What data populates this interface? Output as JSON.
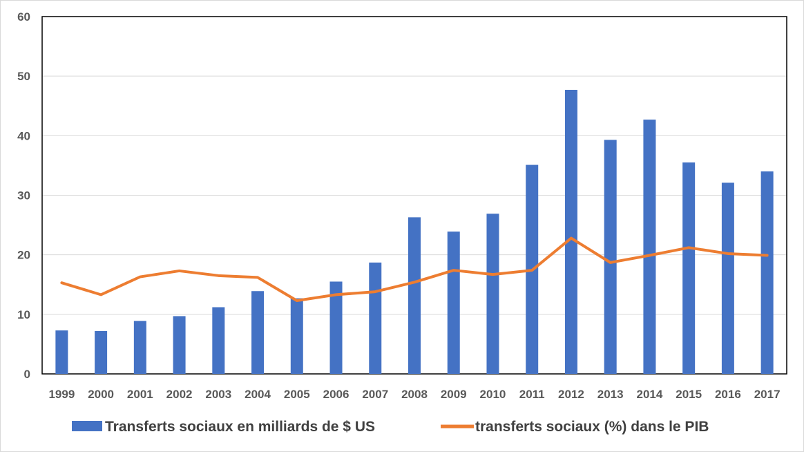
{
  "chart_data": {
    "type": "bar",
    "categories": [
      "1999",
      "2000",
      "2001",
      "2002",
      "2003",
      "2004",
      "2005",
      "2006",
      "2007",
      "2008",
      "2009",
      "2010",
      "2011",
      "2012",
      "2013",
      "2014",
      "2015",
      "2016",
      "2017"
    ],
    "series": [
      {
        "name": "Transferts sociaux en milliards de $ US",
        "type": "bar",
        "color": "#4472C4",
        "values": [
          7.3,
          7.2,
          8.9,
          9.7,
          11.2,
          13.9,
          12.7,
          15.5,
          18.7,
          26.3,
          23.9,
          26.9,
          35.1,
          47.7,
          39.3,
          42.7,
          35.5,
          32.1,
          34.0
        ]
      },
      {
        "name": "transferts sociaux (%) dans le PIB",
        "type": "line",
        "color": "#ED7D31",
        "values": [
          15.3,
          13.3,
          16.3,
          17.3,
          16.5,
          16.2,
          12.3,
          13.3,
          13.8,
          15.4,
          17.4,
          16.7,
          17.4,
          22.8,
          18.7,
          19.9,
          21.2,
          20.2,
          19.9
        ]
      }
    ],
    "y_ticks": [
      "0",
      "10",
      "20",
      "30",
      "40",
      "50",
      "60"
    ],
    "ylim": [
      0,
      60
    ],
    "grid": true,
    "legend_position": "bottom"
  }
}
